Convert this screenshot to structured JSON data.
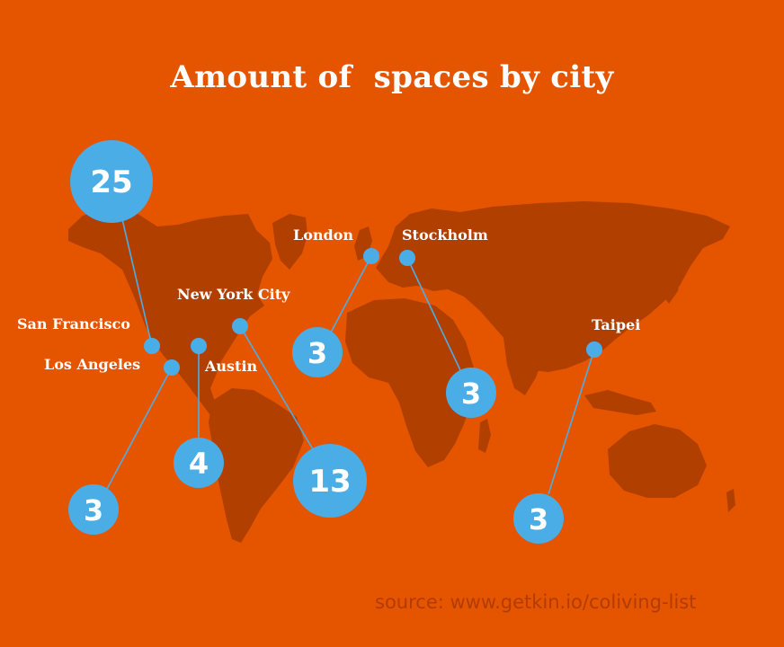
{
  "title": "Amount of  spaces by city",
  "source": "source: www.getkin.io/coliving-list",
  "colors": {
    "background": "#e55500",
    "landmass": "#b13f00",
    "marker": "#4aade6",
    "label": "#ffffff",
    "source_text": "#b23c00"
  },
  "cities": [
    {
      "name": "San Francisco",
      "count": "25"
    },
    {
      "name": "Los Angeles",
      "count": "3"
    },
    {
      "name": "Austin",
      "count": "4"
    },
    {
      "name": "New York City",
      "count": "13"
    },
    {
      "name": "London",
      "count": "3"
    },
    {
      "name": "Stockholm",
      "count": "3"
    },
    {
      "name": "Taipei",
      "count": "3"
    }
  ]
}
